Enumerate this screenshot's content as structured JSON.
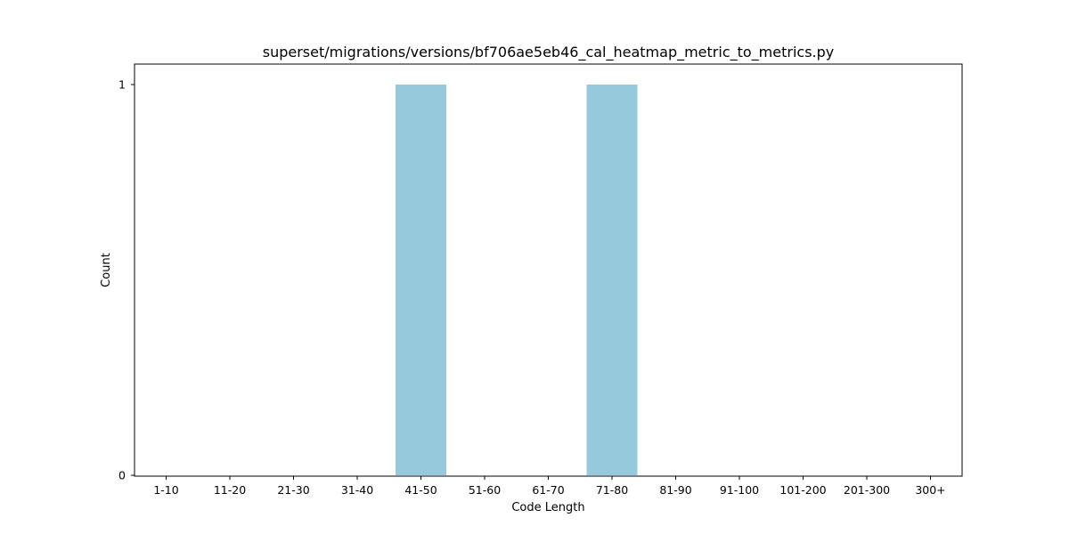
{
  "chart_data": {
    "type": "bar",
    "title": "superset/migrations/versions/bf706ae5eb46_cal_heatmap_metric_to_metrics.py",
    "xlabel": "Code Length",
    "ylabel": "Count",
    "categories": [
      "1-10",
      "11-20",
      "21-30",
      "31-40",
      "41-50",
      "51-60",
      "61-70",
      "71-80",
      "81-90",
      "91-100",
      "101-200",
      "201-300",
      "300+"
    ],
    "values": [
      0,
      0,
      0,
      0,
      1,
      0,
      0,
      1,
      0,
      0,
      0,
      0,
      0
    ],
    "ylim": [
      0,
      1
    ],
    "yticks": [
      "0",
      "1"
    ],
    "bar_color": "#96c9dc",
    "grid": false,
    "legend": "none"
  }
}
